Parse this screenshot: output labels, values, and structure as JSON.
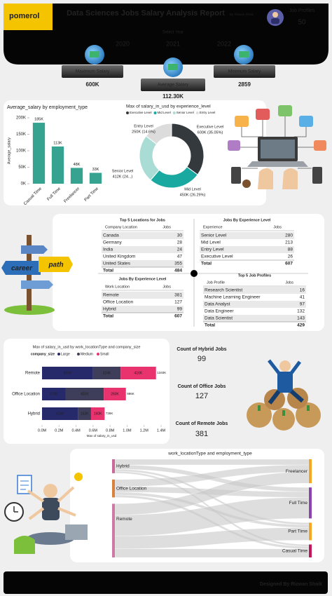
{
  "header": {
    "brand": "pomerol",
    "title": "Data Sciences Jobs Salary Analysis Report",
    "author": "By Rizwan Shaik",
    "job_profiles_label": "Job Profiles",
    "job_profiles_value": 50,
    "select_year": "Select Year",
    "years": [
      2020,
      2021,
      2022
    ]
  },
  "kpis": [
    {
      "label": "Maximum Salary",
      "value": "600K"
    },
    {
      "label": "Average Salary",
      "value": "112.30K"
    },
    {
      "label": "Minimum Salary",
      "value": 2859
    }
  ],
  "chart_data": [
    {
      "type": "bar",
      "orientation": "vertical",
      "title": "Average_salary by employment_type",
      "ylabel": "Average_salary",
      "categories": [
        "Casual Time",
        "Full Time",
        "Freelancer",
        "Part Time"
      ],
      "values": [
        185000,
        113000,
        48000,
        33000
      ],
      "value_labels": [
        "185K",
        "113K",
        "48K",
        "33K"
      ],
      "color": "#36a391",
      "ylim": [
        0,
        200000
      ],
      "yticks": [
        {
          "value": 0,
          "label": "0K"
        },
        {
          "value": 50000,
          "label": "50K"
        },
        {
          "value": 100000,
          "label": "100K"
        },
        {
          "value": 150000,
          "label": "150K"
        },
        {
          "value": 200000,
          "label": "200K"
        }
      ],
      "grid": false
    },
    {
      "type": "pie",
      "donut": true,
      "title": "Max of salary_in_usd by experience_level",
      "categories": [
        "Executive Level",
        "Mid Level",
        "Senior Level",
        "Entry Level"
      ],
      "values": [
        600000,
        450000,
        412000,
        250000
      ],
      "value_labels": [
        "600K (35.05%)",
        "450K (26.29%)",
        "412K (24...)",
        "250K (14.6%)"
      ],
      "colors": [
        "#33393d",
        "#1aa9a1",
        "#a8dcd5",
        "#dcdcdc"
      ],
      "legend": "top"
    },
    {
      "type": "bar",
      "orientation": "horizontal",
      "stacked": true,
      "title": "Max of salary_in_usd by work_locationType and company_size",
      "xlabel": "Max of salary_in_usd",
      "legend_title": "company_size",
      "categories": [
        "Remote",
        "Office Location",
        "Hybrid"
      ],
      "series": [
        {
          "name": "Large",
          "color": "#262a6b",
          "values": [
            600000,
            276000,
            423000
          ],
          "value_labels": [
            "600K",
            "276K",
            "423K"
          ]
        },
        {
          "name": "Medium",
          "color": "#3e3d5a",
          "values": [
            324000,
            450000,
            153000
          ],
          "value_labels": [
            "324K",
            "450K",
            "153K"
          ]
        },
        {
          "name": "Small",
          "color": "#e8336e",
          "values": [
            416000,
            260000,
            160000
          ],
          "value_labels": [
            "416K",
            "260K",
            "160K"
          ]
        }
      ],
      "total_labels": [
        "1340K",
        "986K",
        "736K"
      ],
      "xlim": [
        0,
        1400000
      ],
      "xticks": [
        {
          "value": 0,
          "label": "0.0M"
        },
        {
          "value": 200000,
          "label": "0.2M"
        },
        {
          "value": 400000,
          "label": "0.4M"
        },
        {
          "value": 600000,
          "label": "0.6M"
        },
        {
          "value": 800000,
          "label": "0.8M"
        },
        {
          "value": 1000000,
          "label": "1.0M"
        },
        {
          "value": 1200000,
          "label": "1.2M"
        },
        {
          "value": 1400000,
          "label": "1.4M"
        }
      ],
      "legend": "top"
    },
    {
      "type": "sankey",
      "title": "work_locationType and employment_type",
      "nodes": [
        "Hybrid",
        "Office Location",
        "Remote",
        "Freelancer",
        "Full Time",
        "Part Time",
        "Casual Time"
      ],
      "node_colors": [
        "#c96a9a",
        "#d9823f",
        "#cf7aa6",
        "#f5a623",
        "#8e44ad",
        "#f5a623",
        "#c2185b"
      ],
      "links": [
        {
          "source": 0,
          "target": 3,
          "value": 40
        },
        {
          "source": 0,
          "target": 4,
          "value": 30
        },
        {
          "source": 0,
          "target": 5,
          "value": 15
        },
        {
          "source": 0,
          "target": 6,
          "value": 14
        },
        {
          "source": 1,
          "target": 3,
          "value": 50
        },
        {
          "source": 1,
          "target": 4,
          "value": 40
        },
        {
          "source": 1,
          "target": 5,
          "value": 20
        },
        {
          "source": 1,
          "target": 6,
          "value": 17
        },
        {
          "source": 2,
          "target": 3,
          "value": 80
        },
        {
          "source": 2,
          "target": 4,
          "value": 150
        },
        {
          "source": 2,
          "target": 5,
          "value": 90
        },
        {
          "source": 2,
          "target": 6,
          "value": 61
        }
      ]
    }
  ],
  "tables": [
    {
      "title": "Top 5 Locations for Jobs",
      "columns": [
        "Company Location",
        "Jobs"
      ],
      "rows": [
        [
          "Canada",
          30
        ],
        [
          "Germany",
          28
        ],
        [
          "India",
          24
        ],
        [
          "United Kingdom",
          47
        ],
        [
          "United States",
          355
        ]
      ],
      "total": [
        "Total",
        484
      ]
    },
    {
      "title": "Jobs By Experience Level",
      "columns": [
        "Experience",
        "Jobs"
      ],
      "rows": [
        [
          "Senior Level",
          280
        ],
        [
          "Mid Level",
          213
        ],
        [
          "Entry Level",
          88
        ],
        [
          "Executive Level",
          26
        ]
      ],
      "total": [
        "Total",
        607
      ]
    },
    {
      "title": "Jobs By Experience Level",
      "columns": [
        "Work Location",
        "Jobs"
      ],
      "rows": [
        [
          "Remote",
          381
        ],
        [
          "Office Location",
          127
        ],
        [
          "Hybrid",
          99
        ]
      ],
      "total": [
        "Total",
        607
      ]
    },
    {
      "title": "Top 5 Job Profiles",
      "columns": [
        "Job Profile",
        "Jobs"
      ],
      "rows": [
        [
          "Research Scientist",
          16
        ],
        [
          "Machine Learning Engineer",
          41
        ],
        [
          "Data Analyst",
          97
        ],
        [
          "Data Engineer",
          132
        ],
        [
          "Data Scientist",
          143
        ]
      ],
      "total": [
        "Total",
        429
      ]
    }
  ],
  "counts": [
    {
      "label": "Count of Hybrid Jobs",
      "value": 99
    },
    {
      "label": "Count of Office Jobs",
      "value": 127
    },
    {
      "label": "Count of Remote Jobs",
      "value": 381
    }
  ],
  "illustration": {
    "career": "career",
    "path": "path"
  },
  "footer": "Designed By Rizwan Shaik"
}
